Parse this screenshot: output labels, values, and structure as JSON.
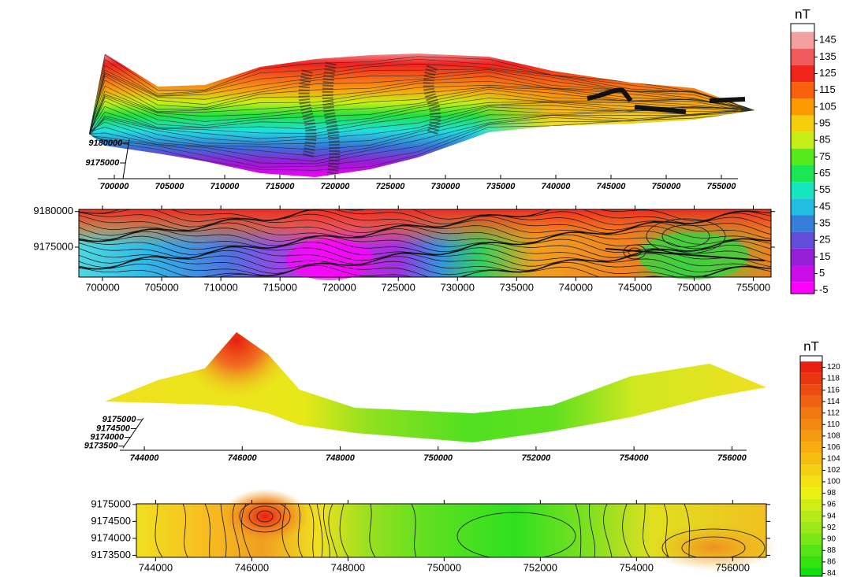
{
  "chart_data": [
    {
      "type": "surface",
      "xlim": [
        698500,
        756500
      ],
      "xticks": [
        700000,
        705000,
        710000,
        715000,
        720000,
        725000,
        730000,
        735000,
        740000,
        745000,
        750000,
        755000
      ],
      "ylim": [
        9171000,
        9181000
      ],
      "yticks": [
        9175000,
        9180000
      ]
    },
    {
      "type": "contour",
      "xlim": [
        698000,
        756500
      ],
      "xticks": [
        700000,
        705000,
        710000,
        715000,
        720000,
        725000,
        730000,
        735000,
        740000,
        745000,
        750000,
        755000
      ],
      "ylim": [
        9170800,
        9180300
      ],
      "yticks": [
        9175000,
        9180000
      ]
    },
    {
      "type": "colorbar",
      "label": "nT",
      "lim": [
        -7,
        155
      ],
      "ticks": [
        145,
        135,
        125,
        115,
        105,
        95,
        85,
        75,
        65,
        55,
        45,
        35,
        25,
        15,
        5,
        -5
      ],
      "colormap": [
        "#ff00ff",
        "#9b19d6",
        "#3a6fd8",
        "#14e6e6",
        "#1ee61e",
        "#f0f014",
        "#ff8c00",
        "#f01e1e",
        "#f5a0a0"
      ]
    },
    {
      "type": "surface",
      "xlim": [
        743500,
        756300
      ],
      "xticks": [
        744000,
        746000,
        748000,
        750000,
        752000,
        754000,
        756000
      ],
      "ylim": [
        9173400,
        9175100
      ],
      "yticks": [
        9173500,
        9174000,
        9174500,
        9175000
      ]
    },
    {
      "type": "contour",
      "xlim": [
        743600,
        756700
      ],
      "xticks": [
        744000,
        746000,
        748000,
        750000,
        752000,
        754000,
        756000
      ],
      "ylim": [
        9173440,
        9175020
      ],
      "yticks": [
        9173500,
        9174000,
        9174500,
        9175000
      ]
    },
    {
      "type": "colorbar",
      "label": "nT",
      "lim": [
        83.5,
        122
      ],
      "ticks": [
        120,
        118,
        116,
        114,
        112,
        110,
        108,
        106,
        104,
        102,
        100,
        98,
        96,
        94,
        92,
        90,
        88,
        86,
        84
      ],
      "colormap": [
        "#10e010",
        "#90e818",
        "#f0f014",
        "#f8b010",
        "#f07010",
        "#e82010"
      ]
    }
  ]
}
